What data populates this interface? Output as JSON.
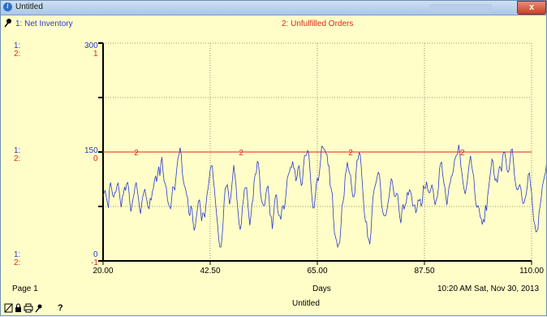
{
  "window": {
    "title": "Untitled",
    "close_glyph": "x"
  },
  "legend": {
    "series1": "1: Net Inventory",
    "series2": "2: Unfulfilled Orders"
  },
  "axis_labels": {
    "blue_prefix": "1:",
    "red_prefix": "2:",
    "blue_top": "300",
    "red_top": "1",
    "blue_mid": "150",
    "red_mid": "0",
    "blue_bottom": "0",
    "red_bottom": "-1"
  },
  "footer": {
    "page": "Page 1",
    "xaxis_label": "Days",
    "timestamp": "10:20 AM  Sat, Nov 30, 2013",
    "doc_title": "Untitled"
  },
  "toolbar": {
    "icons": [
      "page-icon",
      "lock-icon",
      "print-icon",
      "pin-icon"
    ],
    "help": "?"
  },
  "colors": {
    "background": "#fffec8",
    "series1": "#2a3ad0",
    "series2": "#e0261a",
    "grid": "#7a7a50"
  },
  "chart_data": {
    "type": "line",
    "title": "",
    "xlabel": "Days",
    "x_ticks": [
      "20.00",
      "42.50",
      "65.00",
      "87.50",
      "110.00"
    ],
    "xlim": [
      20,
      110
    ],
    "grid": true,
    "series": [
      {
        "name": "1: Net Inventory",
        "color": "#2a3ad0",
        "y_axis": "left",
        "ylim": [
          0,
          300
        ],
        "x_start": 20,
        "x_step": 0.225,
        "values": [
          88,
          94,
          97,
          88,
          80,
          73,
          100,
          108,
          99,
          90,
          88,
          94,
          95,
          104,
          107,
          97,
          84,
          74,
          88,
          92,
          102,
          97,
          106,
          108,
          98,
          80,
          68,
          77,
          86,
          93,
          104,
          108,
          97,
          86,
          73,
          65,
          78,
          88,
          94,
          99,
          90,
          82,
          74,
          72,
          86,
          84,
          95,
          100,
          111,
          117,
          109,
          120,
          130,
          117,
          135,
          143,
          123,
          110,
          106,
          101,
          86,
          78,
          75,
          72,
          85,
          102,
          101,
          98,
          115,
          130,
          142,
          147,
          156,
          145,
          121,
          110,
          103,
          100,
          91,
          86,
          66,
          62,
          76,
          71,
          53,
          42,
          47,
          59,
          71,
          82,
          84,
          71,
          55,
          66,
          65,
          60,
          76,
          91,
          100,
          112,
          126,
          131,
          131,
          111,
          98,
          80,
          64,
          49,
          29,
          19,
          19,
          31,
          51,
          82,
          100,
          102,
          105,
          95,
          78,
          85,
          100,
          116,
          132,
          118,
          106,
          84,
          68,
          51,
          43,
          51,
          73,
          84,
          99,
          101,
          101,
          82,
          64,
          49,
          63,
          79,
          84,
          110,
          119,
          121,
          137,
          135,
          119,
          94,
          82,
          79,
          76,
          77,
          92,
          101,
          103,
          85,
          63,
          61,
          44,
          61,
          79,
          90,
          91,
          69,
          63,
          62,
          57,
          73,
          76,
          71,
          80,
          96,
          114,
          119,
          123,
          129,
          129,
          137,
          128,
          125,
          110,
          115,
          128,
          131,
          115,
          104,
          106,
          128,
          145,
          145,
          146,
          152,
          149,
          128,
          106,
          87,
          73,
          73,
          88,
          105,
          114,
          110,
          122,
          138,
          158,
          157,
          154,
          153,
          148,
          147,
          132,
          131,
          104,
          99,
          92,
          60,
          39,
          33,
          27,
          19,
          23,
          26,
          46,
          76,
          81,
          90,
          117,
          124,
          136,
          127,
          121,
          118,
          102,
          89,
          88,
          93,
          117,
          138,
          140,
          149,
          147,
          130,
          107,
          84,
          64,
          54,
          54,
          33,
          30,
          23,
          38,
          66,
          88,
          98,
          104,
          109,
          117,
          122,
          119,
          101,
          78,
          68,
          63,
          62,
          63,
          70,
          80,
          88,
          102,
          113,
          110,
          98,
          89,
          89,
          93,
          92,
          75,
          60,
          52,
          70,
          78,
          71,
          77,
          80,
          94,
          91,
          98,
          96,
          89,
          76,
          76,
          77,
          66,
          72,
          84,
          83,
          85,
          75,
          80,
          104,
          100,
          100,
          109,
          99,
          94,
          94,
          99,
          105,
          98,
          85,
          77,
          84,
          88,
          100,
          126,
          134,
          136,
          120,
          108,
          102,
          88,
          77,
          90,
          103,
          107,
          116,
          118,
          125,
          138,
          143,
          146,
          147,
          160,
          150,
          130,
          121,
          108,
          99,
          92,
          100,
          110,
          123,
          136,
          145,
          132,
          123,
          117,
          94,
          78,
          74,
          76,
          72,
          61,
          58,
          50,
          57,
          54,
          77,
          69,
          90,
          101,
          114,
          126,
          140,
          137,
          119,
          111,
          113,
          108,
          121,
          130,
          129,
          123,
          145,
          150,
          149,
          140,
          126,
          122,
          125,
          140,
          153,
          154,
          138,
          118,
          107,
          99,
          98,
          102,
          105,
          100,
          87,
          79,
          80,
          86,
          92,
          103,
          119,
          121,
          104,
          94,
          74,
          56,
          50,
          40,
          41,
          44,
          67,
          76,
          87,
          102,
          109,
          116,
          122,
          135,
          130,
          117,
          109,
          106,
          104,
          102,
          110,
          133,
          138,
          128,
          121,
          112,
          106,
          93,
          72,
          58,
          46,
          30,
          22,
          20,
          32,
          50,
          69,
          88,
          98,
          103,
          110,
          112,
          116,
          109,
          97,
          82,
          72,
          73,
          83,
          89,
          98,
          112,
          126,
          133,
          135,
          130,
          132,
          126,
          123,
          120,
          113,
          108,
          103,
          94,
          82,
          72,
          73,
          81,
          98,
          105,
          105,
          95,
          93,
          91,
          88,
          90,
          105,
          104,
          108,
          107,
          100,
          103,
          107,
          104,
          103,
          94,
          94,
          100,
          107,
          112,
          110,
          118,
          122,
          117,
          113,
          109,
          106,
          102,
          87,
          74,
          79,
          74,
          67,
          81,
          89,
          91,
          89,
          100,
          103,
          111,
          106,
          114,
          117,
          126,
          134,
          130,
          124,
          116,
          119,
          116,
          115,
          106,
          99,
          101,
          94,
          81,
          85,
          95,
          96,
          90,
          90,
          99,
          93,
          93,
          93,
          74,
          62,
          56,
          60,
          58,
          81,
          80,
          92,
          88,
          98,
          88,
          81,
          73,
          80,
          79,
          71,
          76,
          84,
          88,
          89,
          90,
          93,
          105,
          108,
          91,
          67,
          65,
          72,
          71,
          69,
          64,
          50,
          58,
          65,
          78,
          94,
          100,
          109,
          114,
          124,
          135,
          146,
          154,
          143,
          136,
          120,
          115,
          110,
          126,
          134,
          144,
          139,
          123,
          99,
          78,
          67,
          56,
          60,
          66,
          82,
          100,
          114,
          124,
          123,
          131,
          136,
          124,
          117,
          107,
          97,
          88,
          84,
          76,
          72,
          65,
          58,
          50,
          43,
          30,
          36,
          37,
          49,
          48
        ]
      },
      {
        "name": "2: Unfulfilled Orders",
        "color": "#e0261a",
        "y_axis": "right",
        "ylim": [
          -1,
          1
        ],
        "x": [
          20,
          110
        ],
        "values": [
          0,
          0
        ],
        "marker_label": "2",
        "marker_x": [
          27.0,
          49.0,
          72.0,
          95.5
        ]
      }
    ]
  }
}
